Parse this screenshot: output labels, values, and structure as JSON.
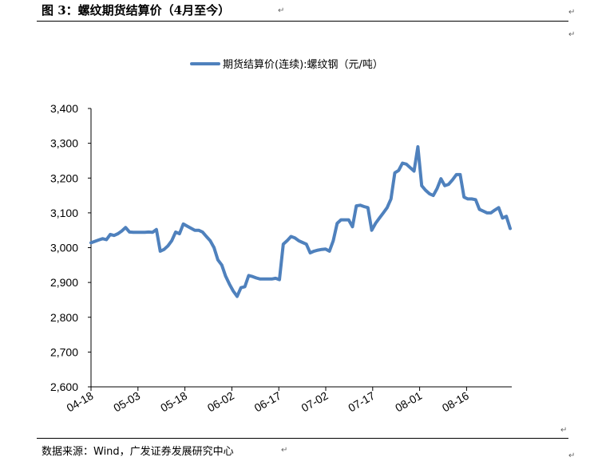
{
  "title": "图 3：螺纹期货结算价（4月至今）",
  "source": "数据来源：Wind，广发证券发展研究中心",
  "return_mark": "↵",
  "colors": {
    "line": "#4F81BD",
    "axis": "#000000",
    "text": "#000000"
  },
  "chart_data": {
    "type": "line",
    "title": "",
    "xlabel": "",
    "ylabel": "",
    "ylim": [
      2600,
      3400
    ],
    "yticks": [
      2600,
      2700,
      2800,
      2900,
      3000,
      3100,
      3200,
      3300,
      3400
    ],
    "ytick_labels": [
      "2,600",
      "2,700",
      "2,800",
      "2,900",
      "3,000",
      "3,100",
      "3,200",
      "3,300",
      "3,400"
    ],
    "xtick_labels": [
      "04-18",
      "05-03",
      "05-18",
      "06-02",
      "06-17",
      "07-02",
      "07-17",
      "08-01",
      "08-16"
    ],
    "grid": false,
    "legend_position": "top",
    "series": [
      {
        "name": "期货结算价(连续):螺纹钢（元/吨）",
        "values": [
          3014,
          3018,
          3022,
          3026,
          3023,
          3038,
          3035,
          3040,
          3048,
          3058,
          3045,
          3044,
          3044,
          3044,
          3044,
          3045,
          3044,
          3052,
          2990,
          2995,
          3005,
          3020,
          3045,
          3040,
          3068,
          3062,
          3056,
          3050,
          3050,
          3045,
          3032,
          3020,
          3000,
          2965,
          2950,
          2918,
          2895,
          2875,
          2860,
          2885,
          2888,
          2920,
          2917,
          2913,
          2910,
          2910,
          2910,
          2910,
          2912,
          2908,
          3010,
          3020,
          3032,
          3028,
          3020,
          3015,
          3010,
          2985,
          2990,
          2993,
          2995,
          2996,
          2990,
          3020,
          3070,
          3080,
          3080,
          3080,
          3060,
          3120,
          3122,
          3118,
          3115,
          3050,
          3070,
          3085,
          3100,
          3115,
          3140,
          3215,
          3222,
          3243,
          3240,
          3230,
          3220,
          3290,
          3178,
          3165,
          3155,
          3150,
          3170,
          3198,
          3178,
          3182,
          3195,
          3210,
          3210,
          3145,
          3140,
          3140,
          3138,
          3110,
          3105,
          3100,
          3100,
          3108,
          3115,
          3085,
          3090,
          3055
        ]
      }
    ]
  }
}
